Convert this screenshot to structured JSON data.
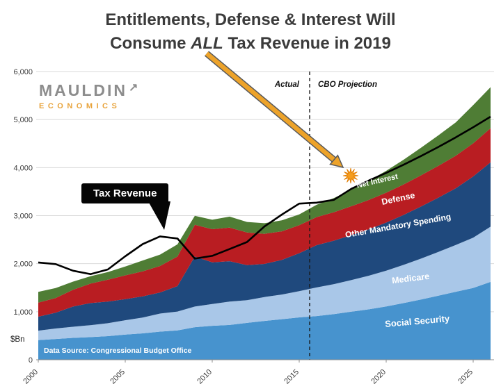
{
  "title": {
    "line1": "Entitlements, Defense & Interest Will",
    "line2_pre": "Consume ",
    "line2_italic": "ALL",
    "line2_post": " Tax Revenue in 2019"
  },
  "logo": {
    "name": "MAULDIN",
    "sub": "ECONOMICS",
    "arrow_icon": "↗"
  },
  "annotations": {
    "actual": "Actual",
    "projection": "CBO Projection",
    "data_source": "Data Source: Congressional Budget Office",
    "y_unit": "$Bn"
  },
  "accent_colors": {
    "arrow_gold": "#eda32a",
    "arrow_outline": "#58595b",
    "sun": "#f59d1e",
    "callout_bg": "#050505",
    "logo_gray": "#8d8d8d",
    "logo_orange": "#e8a33b"
  },
  "chart_data": {
    "type": "area",
    "stacked": true,
    "title": "Entitlements, Defense & Interest Will Consume ALL Tax Revenue in 2019",
    "ylabel": "$Bn",
    "ylim": [
      0,
      6000
    ],
    "yticks": [
      0,
      1000,
      2000,
      3000,
      4000,
      5000,
      6000
    ],
    "xticks": [
      2000,
      2005,
      2010,
      2015,
      2020,
      2025
    ],
    "grid": true,
    "divider_x": 2015.6,
    "x": [
      2000,
      2001,
      2002,
      2003,
      2004,
      2005,
      2006,
      2007,
      2008,
      2009,
      2010,
      2011,
      2012,
      2013,
      2014,
      2015,
      2016,
      2017,
      2018,
      2019,
      2020,
      2021,
      2022,
      2023,
      2024,
      2025,
      2026
    ],
    "series": [
      {
        "id": "social-security",
        "name": "Social Security",
        "color": "#4793ce",
        "values": [
          409,
          433,
          456,
          471,
          492,
          523,
          549,
          586,
          612,
          678,
          707,
          725,
          768,
          808,
          845,
          882,
          910,
          950,
          1000,
          1050,
          1110,
          1180,
          1255,
          1335,
          1415,
          1495,
          1620
        ]
      },
      {
        "id": "medicare",
        "name": "Medicare",
        "color": "#a9c7e8",
        "values": [
          197,
          217,
          231,
          249,
          269,
          299,
          330,
          375,
          391,
          430,
          452,
          486,
          472,
          497,
          512,
          546,
          595,
          625,
          660,
          700,
          745,
          795,
          850,
          910,
          975,
          1045,
          1150
        ]
      },
      {
        "id": "other-mandatory-spending",
        "name": "Other Mandatory Spending",
        "color": "#1f497d",
        "values": [
          290,
          330,
          420,
          460,
          450,
          440,
          440,
          440,
          530,
          1040,
          870,
          840,
          730,
          690,
          720,
          790,
          880,
          905,
          935,
          965,
          1000,
          1040,
          1085,
          1130,
          1180,
          1275,
          1340
        ]
      },
      {
        "id": "defense",
        "name": "Defense",
        "color": "#b91d22",
        "values": [
          294,
          306,
          349,
          405,
          454,
          494,
          520,
          551,
          616,
          661,
          689,
          699,
          678,
          626,
          596,
          583,
          585,
          592,
          602,
          612,
          622,
          634,
          648,
          662,
          676,
          690,
          710
        ]
      },
      {
        "id": "net-interest",
        "name": "Net Interest",
        "color": "#4f7d35",
        "values": [
          223,
          206,
          171,
          153,
          160,
          184,
          227,
          237,
          253,
          187,
          196,
          230,
          220,
          221,
          229,
          223,
          255,
          295,
          345,
          400,
          455,
          515,
          575,
          635,
          695,
          795,
          855
        ]
      }
    ],
    "line_series": {
      "name": "Tax Revenue",
      "color": "#000000",
      "values": [
        2025,
        1991,
        1853,
        1782,
        1880,
        2154,
        2407,
        2568,
        2524,
        2105,
        2163,
        2304,
        2450,
        2775,
        3021,
        3250,
        3270,
        3330,
        3560,
        3730,
        3890,
        4060,
        4240,
        4430,
        4630,
        4840,
        5060
      ]
    }
  }
}
